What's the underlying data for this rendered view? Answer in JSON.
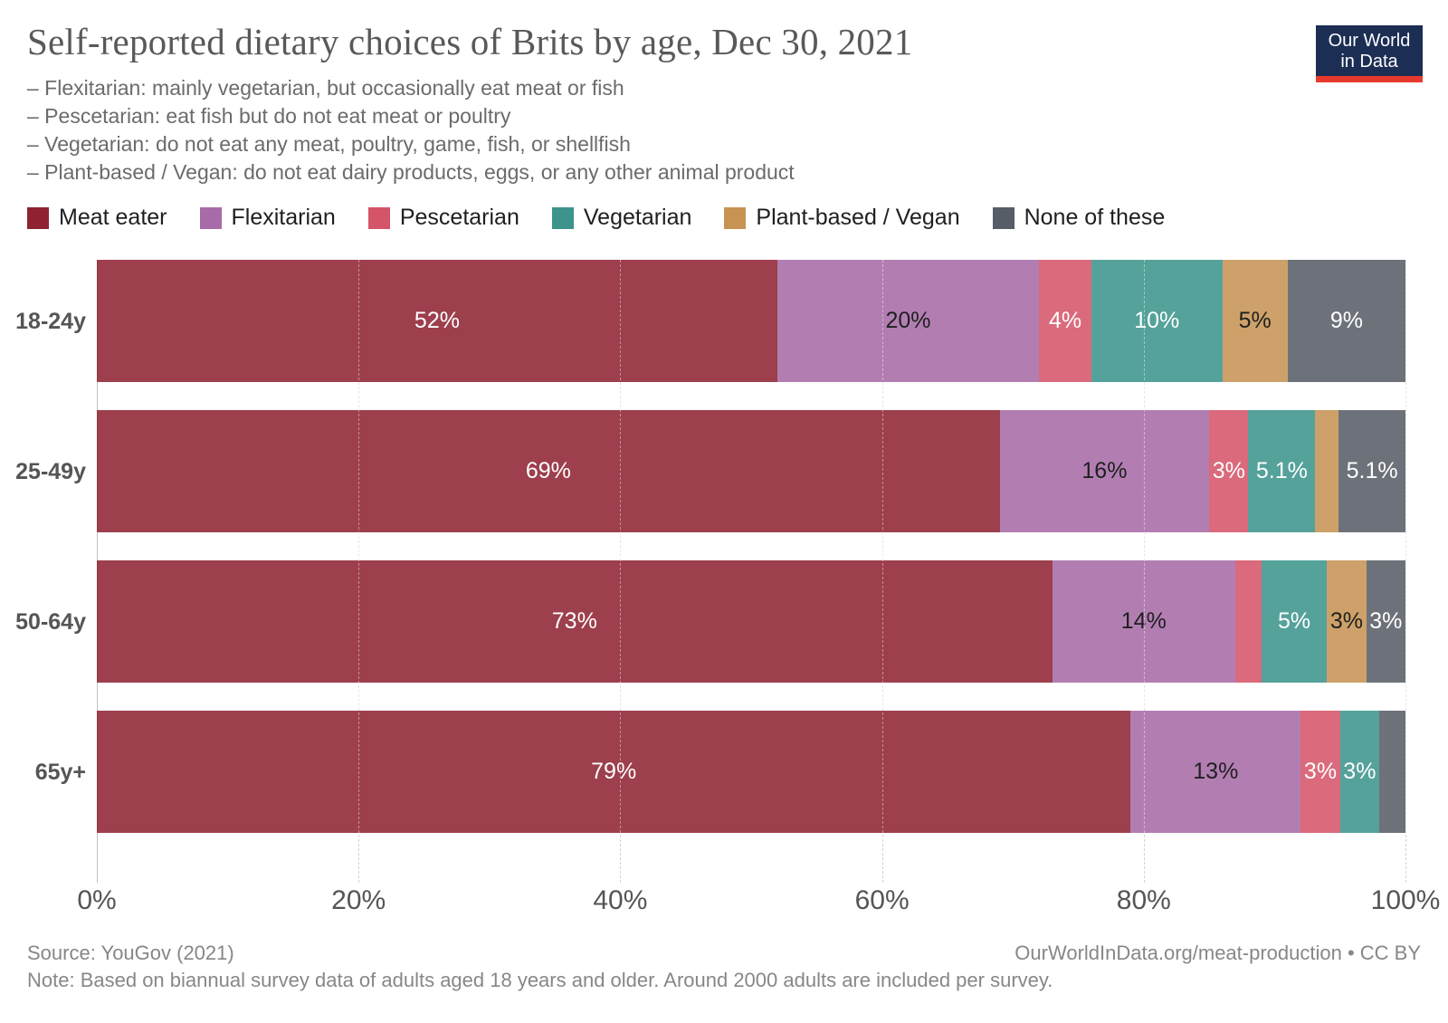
{
  "header": {
    "title": "Self-reported dietary choices of Brits by age, Dec 30, 2021",
    "subtitle_lines": [
      "– Flexitarian: mainly vegetarian, but occasionally eat meat or fish",
      "– Pescetarian: eat fish but do not eat meat or poultry",
      "– Vegetarian: do not eat any meat, poultry, game, fish, or shellfish",
      "– Plant-based / Vegan: do not eat dairy products, eggs, or any other animal product"
    ]
  },
  "logo": {
    "line1": "Our World",
    "line2": "in Data",
    "bg_color": "#1c2e54",
    "accent_color": "#e8392d"
  },
  "chart_data": {
    "type": "bar",
    "stacked": true,
    "orientation": "horizontal",
    "grid": true,
    "legend_position": "top",
    "xlim": [
      0,
      100
    ],
    "x_ticks": [
      {
        "value": 0,
        "label": "0%"
      },
      {
        "value": 20,
        "label": "20%"
      },
      {
        "value": 40,
        "label": "40%"
      },
      {
        "value": 60,
        "label": "60%"
      },
      {
        "value": 80,
        "label": "80%"
      },
      {
        "value": 100,
        "label": "100%"
      }
    ],
    "categories": [
      "18-24y",
      "25-49y",
      "50-64y",
      "65y+"
    ],
    "series": [
      {
        "name": "Meat eater",
        "color": "#8e2231",
        "label_color": "#ffffff",
        "values": [
          52,
          69,
          73,
          79
        ],
        "labels": [
          "52%",
          "69%",
          "73%",
          "79%"
        ]
      },
      {
        "name": "Flexitarian",
        "color": "#a76ba7",
        "label_color": "#202020",
        "values": [
          20,
          16,
          14,
          13
        ],
        "labels": [
          "20%",
          "16%",
          "14%",
          "13%"
        ]
      },
      {
        "name": "Pescetarian",
        "color": "#d45468",
        "label_color": "#ffffff",
        "values": [
          4,
          3,
          2,
          3
        ],
        "labels": [
          "4%",
          "3%",
          "",
          "3%"
        ]
      },
      {
        "name": "Vegetarian",
        "color": "#3c948c",
        "label_color": "#ffffff",
        "values": [
          10,
          5.1,
          5,
          3
        ],
        "labels": [
          "10%",
          "5.1%",
          "5%",
          "3%"
        ]
      },
      {
        "name": "Plant-based / Vegan",
        "color": "#c69353",
        "label_color": "#202020",
        "values": [
          5,
          1.8,
          3,
          0
        ],
        "labels": [
          "5%",
          "",
          "3%",
          ""
        ]
      },
      {
        "name": "None of these",
        "color": "#575d66",
        "label_color": "#ffffff",
        "values": [
          9,
          5.1,
          3,
          2
        ],
        "labels": [
          "9%",
          "5.1%",
          "3%",
          ""
        ]
      }
    ]
  },
  "footer": {
    "source": "Source: YouGov (2021)",
    "note": "Note: Based on biannual survey data of adults aged 18 years and older. Around 2000 adults are included per survey.",
    "link": "OurWorldInData.org/meat-production • CC BY"
  }
}
